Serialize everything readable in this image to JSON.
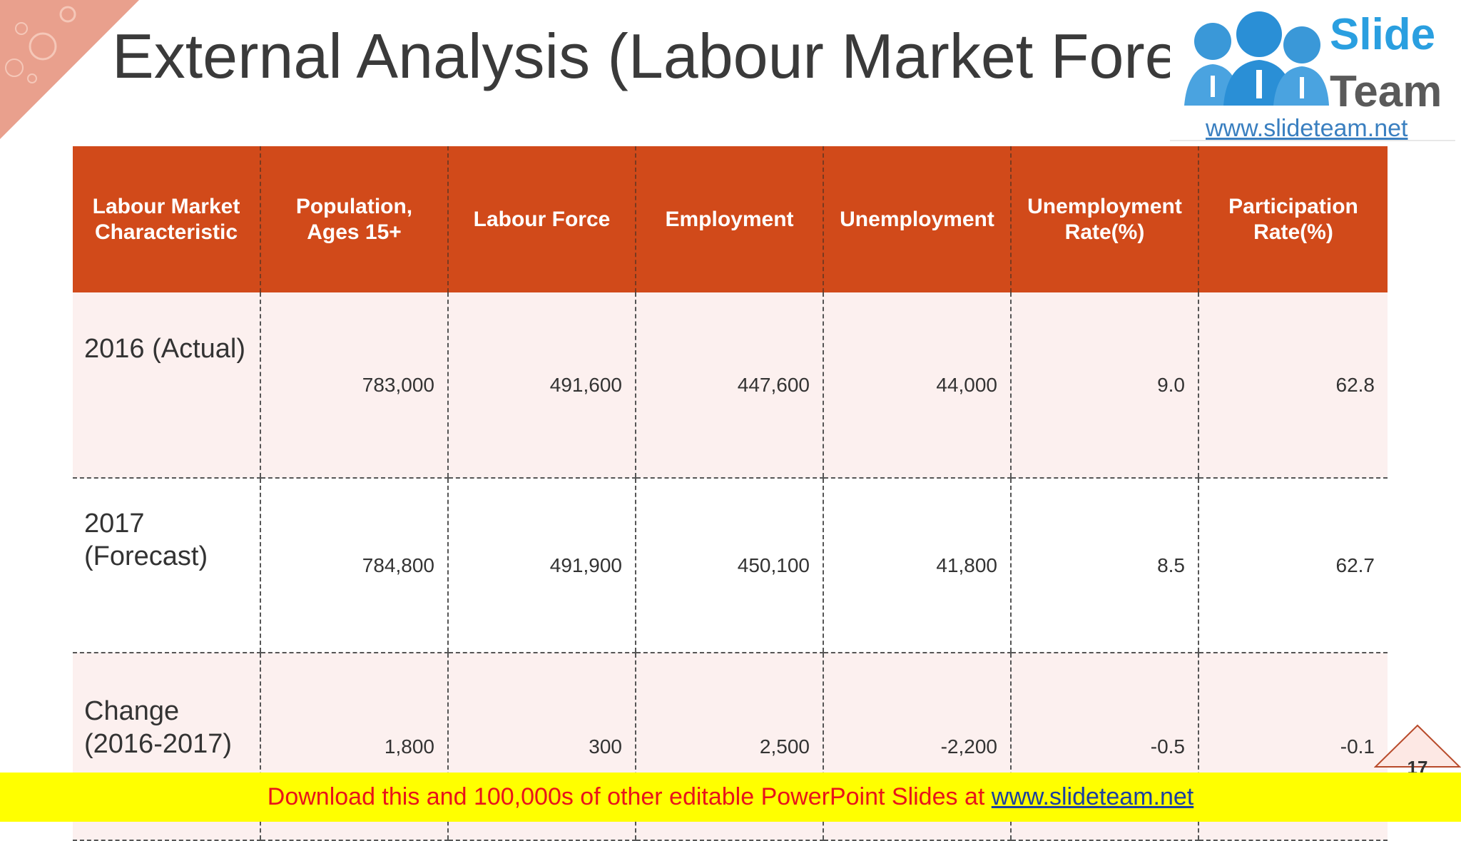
{
  "slide": {
    "title": "External Analysis (Labour Market Foreca",
    "page_number": "17"
  },
  "logo": {
    "line1": "Slide",
    "line2": "Team",
    "url": "www.slideteam.net"
  },
  "table": {
    "headers": [
      "Labour Market Characteristic",
      "Population, Ages 15+",
      "Labour Force",
      "Employment",
      "Unemployment",
      "Unemployment Rate(%)",
      "Participation Rate(%)"
    ],
    "rows": [
      [
        "2016 (Actual)",
        "783,000",
        "491,600",
        "447,600",
        "44,000",
        "9.0",
        "62.8"
      ],
      [
        "2017 (Forecast)",
        "784,800",
        "491,900",
        "450,100",
        "41,800",
        "8.5",
        "62.7"
      ],
      [
        "Change (2016-2017)",
        "1,800",
        "300",
        "2,500",
        "-2,200",
        "-0.5",
        "-0.1"
      ]
    ]
  },
  "banner": {
    "text": "Download this and 100,000s of other editable PowerPoint Slides at ",
    "link": "www.slideteam.net"
  },
  "colors": {
    "header_bg": "#d14a1a",
    "row_shade": "#fcf0ef",
    "banner_bg": "#ffff00",
    "banner_text": "#e8141a",
    "logo_blue": "#2a9fe0"
  }
}
